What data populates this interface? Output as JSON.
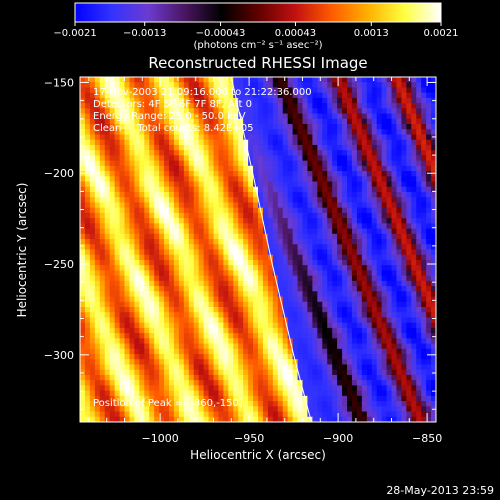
{
  "chart_data": {
    "type": "heatmap",
    "title": "Reconstructed RHESSI Image",
    "xlabel": "Heliocentric X (arcsec)",
    "ylabel": "Heliocentric Y (arcsec)",
    "xlim": [
      -1045,
      -845
    ],
    "ylim": [
      -337,
      -147
    ],
    "x_ticks": [
      {
        "value": -1000,
        "label": "−1000"
      },
      {
        "value": -950,
        "label": "−950"
      },
      {
        "value": -900,
        "label": "−900"
      },
      {
        "value": -850,
        "label": "−850"
      }
    ],
    "y_ticks": [
      {
        "value": -150,
        "label": "−150"
      },
      {
        "value": -200,
        "label": "−200"
      },
      {
        "value": -250,
        "label": "−250"
      },
      {
        "value": -300,
        "label": "−300"
      }
    ],
    "colorbar": {
      "range": [
        -0.0021,
        0.0021
      ],
      "unit_label": "(photons cm⁻² s⁻¹ asec⁻²)",
      "ticks": [
        {
          "value": -0.0021,
          "label": "−0.0021"
        },
        {
          "value": -0.0013,
          "label": "−0.0013"
        },
        {
          "value": -0.00043,
          "label": "−0.00043"
        },
        {
          "value": 0.00043,
          "label": "0.00043"
        },
        {
          "value": 0.0013,
          "label": "0.0013"
        },
        {
          "value": 0.0021,
          "label": "0.0021"
        }
      ],
      "colormap": [
        "#0000ff",
        "#3333ff",
        "#6b3bd0",
        "#4a1560",
        "#000000",
        "#600000",
        "#c01010",
        "#ff5a00",
        "#ffb000",
        "#ffff40",
        "#ffffff"
      ]
    },
    "annotations": [
      "17-Nov-2003 21:09:16.000 to 21:22:36.000",
      "Detectors: 4F 5F 6F 7F 8F, Att 0",
      "Energy Range: 25.0 - 50.0 keV",
      "Clean     Total counts: 8.42E+05"
    ],
    "peak_label": "Position of Peak = [-860,-150]",
    "limb_curve": [
      [
        -960,
        -147
      ],
      [
        -948,
        -200
      ],
      [
        -937,
        -250
      ],
      [
        -925,
        -300
      ],
      [
        -915,
        -337
      ]
    ],
    "timestamp": "28-May-2013 23:59"
  }
}
